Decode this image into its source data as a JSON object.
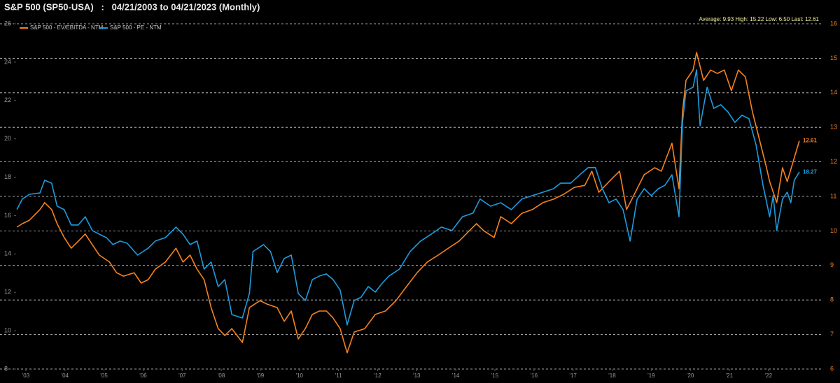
{
  "chart_data": {
    "type": "line",
    "title": "S&P 500 (SP50-USA)   :   04/21/2003 to 04/21/2023 (Monthly)",
    "stats": "Average: 9.93 High: 15.22 Low: 6.50 Last: 12.61",
    "xlim": [
      2003.25,
      2023.9
    ],
    "xticks": [
      {
        "value": 2003.5,
        "label": "'03"
      },
      {
        "value": 2004.5,
        "label": "'04"
      },
      {
        "value": 2005.5,
        "label": "'05"
      },
      {
        "value": 2006.5,
        "label": "'06"
      },
      {
        "value": 2007.5,
        "label": "'07"
      },
      {
        "value": 2008.5,
        "label": "'08"
      },
      {
        "value": 2009.5,
        "label": "'09"
      },
      {
        "value": 2010.5,
        "label": "'10"
      },
      {
        "value": 2011.5,
        "label": "'11"
      },
      {
        "value": 2012.5,
        "label": "'12"
      },
      {
        "value": 2013.5,
        "label": "'13"
      },
      {
        "value": 2014.5,
        "label": "'14"
      },
      {
        "value": 2015.5,
        "label": "'15"
      },
      {
        "value": 2016.5,
        "label": "'16"
      },
      {
        "value": 2017.5,
        "label": "'17"
      },
      {
        "value": 2018.5,
        "label": "'18"
      },
      {
        "value": 2019.5,
        "label": "'19"
      },
      {
        "value": 2020.5,
        "label": "'20"
      },
      {
        "value": 2021.5,
        "label": "'21"
      },
      {
        "value": 2022.5,
        "label": "'22"
      }
    ],
    "ylim": [
      8,
      26
    ],
    "yticks": [
      8,
      10,
      12,
      14,
      16,
      18,
      20,
      22,
      24,
      26
    ],
    "y2lim": [
      6,
      16
    ],
    "y2ticks": [
      6,
      7,
      8,
      9,
      10,
      11,
      12,
      13,
      14,
      15,
      16
    ],
    "grid": true,
    "legend": "top-left",
    "series": [
      {
        "name": "S&P 500 - EV/EBITDA - NTM",
        "color": "#f5821f",
        "axis": "y2",
        "x": [
          2003.27,
          2003.41,
          2003.59,
          2003.86,
          2003.98,
          2004.16,
          2004.3,
          2004.48,
          2004.66,
          2004.84,
          2005.02,
          2005.2,
          2005.38,
          2005.64,
          2005.82,
          2006.0,
          2006.27,
          2006.45,
          2006.63,
          2006.81,
          2007.07,
          2007.34,
          2007.52,
          2007.7,
          2007.88,
          2008.06,
          2008.24,
          2008.42,
          2008.59,
          2008.77,
          2009.04,
          2009.22,
          2009.49,
          2009.67,
          2009.93,
          2010.11,
          2010.29,
          2010.47,
          2010.65,
          2010.83,
          2011.01,
          2011.19,
          2011.36,
          2011.54,
          2011.72,
          2011.9,
          2012.17,
          2012.44,
          2012.7,
          2012.97,
          2013.24,
          2013.51,
          2013.77,
          2014.05,
          2014.31,
          2014.58,
          2014.85,
          2015.03,
          2015.21,
          2015.48,
          2015.65,
          2015.92,
          2016.19,
          2016.46,
          2016.73,
          2017.0,
          2017.26,
          2017.53,
          2017.8,
          2017.98,
          2018.16,
          2018.33,
          2018.51,
          2018.69,
          2018.87,
          2019.05,
          2019.32,
          2019.59,
          2019.76,
          2020.03,
          2020.21,
          2020.3,
          2020.39,
          2020.57,
          2020.66,
          2020.84,
          2021.02,
          2021.19,
          2021.37,
          2021.55,
          2021.73,
          2021.91,
          2022.09,
          2022.27,
          2022.45,
          2022.53,
          2022.71,
          2022.86,
          2022.98,
          2023.11,
          2023.29
        ],
        "values": [
          10.11,
          10.21,
          10.31,
          10.62,
          10.82,
          10.62,
          10.21,
          9.81,
          9.5,
          9.7,
          9.91,
          9.6,
          9.3,
          9.1,
          8.79,
          8.69,
          8.79,
          8.49,
          8.59,
          8.89,
          9.1,
          9.5,
          9.1,
          9.3,
          8.89,
          8.59,
          7.78,
          7.17,
          6.97,
          7.17,
          6.77,
          7.78,
          7.98,
          7.88,
          7.78,
          7.38,
          7.68,
          6.87,
          7.17,
          7.58,
          7.68,
          7.68,
          7.48,
          7.17,
          6.47,
          7.07,
          7.17,
          7.58,
          7.68,
          7.98,
          8.39,
          8.79,
          9.1,
          9.3,
          9.5,
          9.7,
          10.01,
          10.21,
          10.01,
          9.81,
          10.41,
          10.21,
          10.51,
          10.62,
          10.82,
          10.92,
          11.06,
          11.26,
          11.32,
          11.73,
          11.12,
          11.32,
          11.53,
          11.73,
          10.62,
          11.02,
          11.63,
          11.83,
          11.73,
          12.54,
          11.22,
          13.45,
          14.36,
          14.66,
          15.17,
          14.36,
          14.66,
          14.56,
          14.66,
          14.06,
          14.66,
          14.46,
          13.45,
          12.64,
          11.83,
          11.43,
          10.82,
          11.83,
          11.43,
          11.93,
          12.61
        ]
      },
      {
        "name": "S&P 500 - PE - NTM",
        "color": "#1f9bde",
        "axis": "y",
        "x": [
          2003.27,
          2003.41,
          2003.59,
          2003.86,
          2003.98,
          2004.16,
          2004.3,
          2004.48,
          2004.66,
          2004.84,
          2005.02,
          2005.2,
          2005.38,
          2005.56,
          2005.73,
          2005.91,
          2006.09,
          2006.36,
          2006.63,
          2006.81,
          2007.07,
          2007.34,
          2007.52,
          2007.7,
          2007.88,
          2008.06,
          2008.24,
          2008.42,
          2008.59,
          2008.77,
          2009.04,
          2009.22,
          2009.31,
          2009.58,
          2009.76,
          2009.93,
          2010.11,
          2010.29,
          2010.47,
          2010.65,
          2010.83,
          2011.01,
          2011.19,
          2011.36,
          2011.54,
          2011.72,
          2011.9,
          2012.08,
          2012.26,
          2012.44,
          2012.62,
          2012.79,
          2013.06,
          2013.33,
          2013.6,
          2013.87,
          2014.13,
          2014.4,
          2014.67,
          2014.94,
          2015.12,
          2015.39,
          2015.65,
          2015.92,
          2016.19,
          2016.46,
          2016.73,
          2017.0,
          2017.18,
          2017.44,
          2017.71,
          2017.89,
          2018.07,
          2018.25,
          2018.42,
          2018.6,
          2018.78,
          2018.96,
          2019.14,
          2019.32,
          2019.5,
          2019.68,
          2019.85,
          2020.03,
          2020.21,
          2020.3,
          2020.39,
          2020.57,
          2020.66,
          2020.75,
          2020.93,
          2021.1,
          2021.28,
          2021.46,
          2021.64,
          2021.82,
          2022.0,
          2022.18,
          2022.36,
          2022.53,
          2022.62,
          2022.71,
          2022.86,
          2022.98,
          2023.07,
          2023.16,
          2023.29
        ],
        "values": [
          16.31,
          16.86,
          17.11,
          17.18,
          17.84,
          17.69,
          16.49,
          16.31,
          15.51,
          15.51,
          15.94,
          15.22,
          15.03,
          14.85,
          14.49,
          14.67,
          14.56,
          13.94,
          14.3,
          14.67,
          14.85,
          15.4,
          15.03,
          14.49,
          14.67,
          13.21,
          13.58,
          12.3,
          12.66,
          10.84,
          10.66,
          11.94,
          14.12,
          14.49,
          14.12,
          13.03,
          13.76,
          13.94,
          11.94,
          11.57,
          12.66,
          12.85,
          12.96,
          12.66,
          12.12,
          10.3,
          11.57,
          11.75,
          12.3,
          12.01,
          12.48,
          12.85,
          13.21,
          14.12,
          14.67,
          15.03,
          15.4,
          15.22,
          15.94,
          16.13,
          16.86,
          16.49,
          16.67,
          16.31,
          16.86,
          17.04,
          17.22,
          17.4,
          17.69,
          17.69,
          18.2,
          18.5,
          18.5,
          17.4,
          16.67,
          16.86,
          16.31,
          14.67,
          16.86,
          17.4,
          17.04,
          17.4,
          17.58,
          18.13,
          15.94,
          20.86,
          22.5,
          22.69,
          23.6,
          20.68,
          22.69,
          21.59,
          21.78,
          21.41,
          20.86,
          21.23,
          21.05,
          19.7,
          17.58,
          15.94,
          17.04,
          15.22,
          16.86,
          17.22,
          16.67,
          17.84,
          18.27
        ]
      }
    ]
  }
}
